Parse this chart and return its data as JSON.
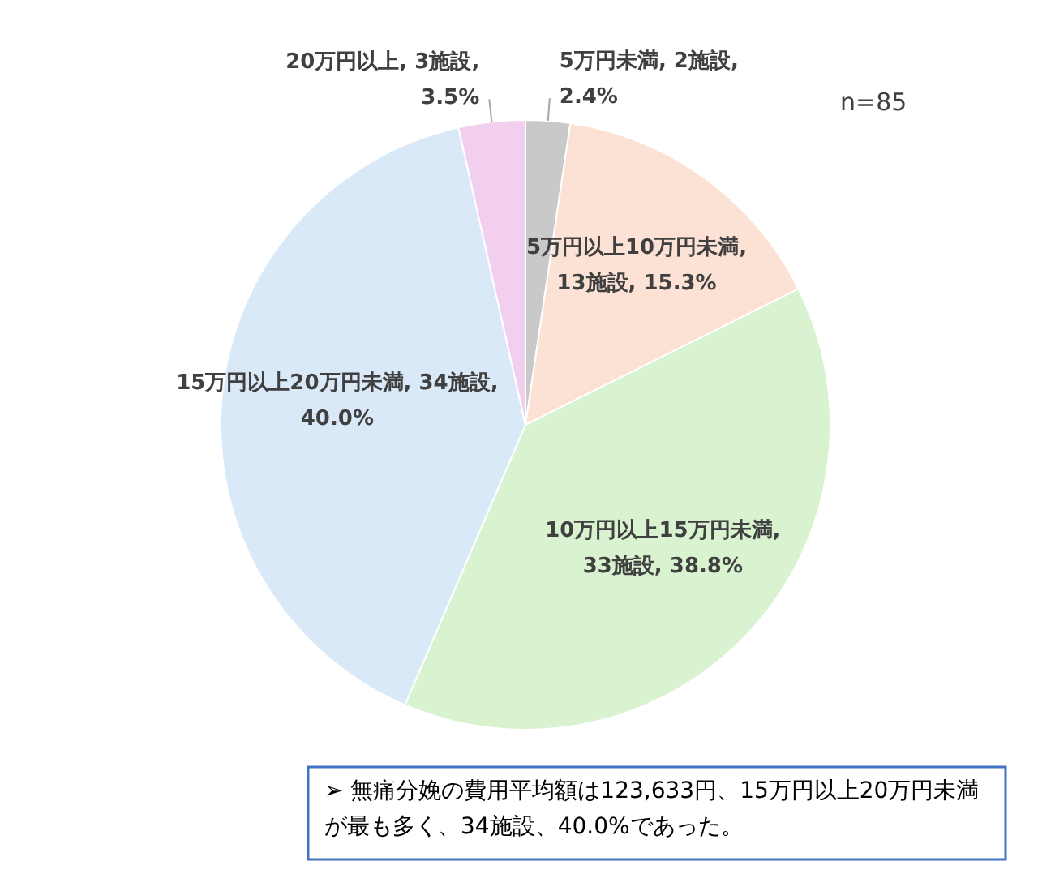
{
  "chart_data": {
    "type": "pie",
    "categories": [
      "5万円未満",
      "5万円以上10万円未満",
      "10万円以上15万円未満",
      "15万円以上20万円未満",
      "20万円以上"
    ],
    "values": [
      2,
      13,
      33,
      34,
      3
    ],
    "value_labels": [
      ", 2施設, 2.4%",
      ", 13施設, 15.3%",
      ", 33施設, 38.8%",
      ", 34施設, 40.0%",
      ", 3施設, 3.5%"
    ],
    "colors": [
      "#c9c9c9",
      "#fbe2d5",
      "#d9f2d0",
      "#dae9f8",
      "#f2ceef"
    ],
    "annotations": [
      "n=85",
      "➢ 無痛分娩の費用平均額は123,633円、15万円以上20万円未満が最も多く、34施設、40.0%であった。"
    ]
  }
}
